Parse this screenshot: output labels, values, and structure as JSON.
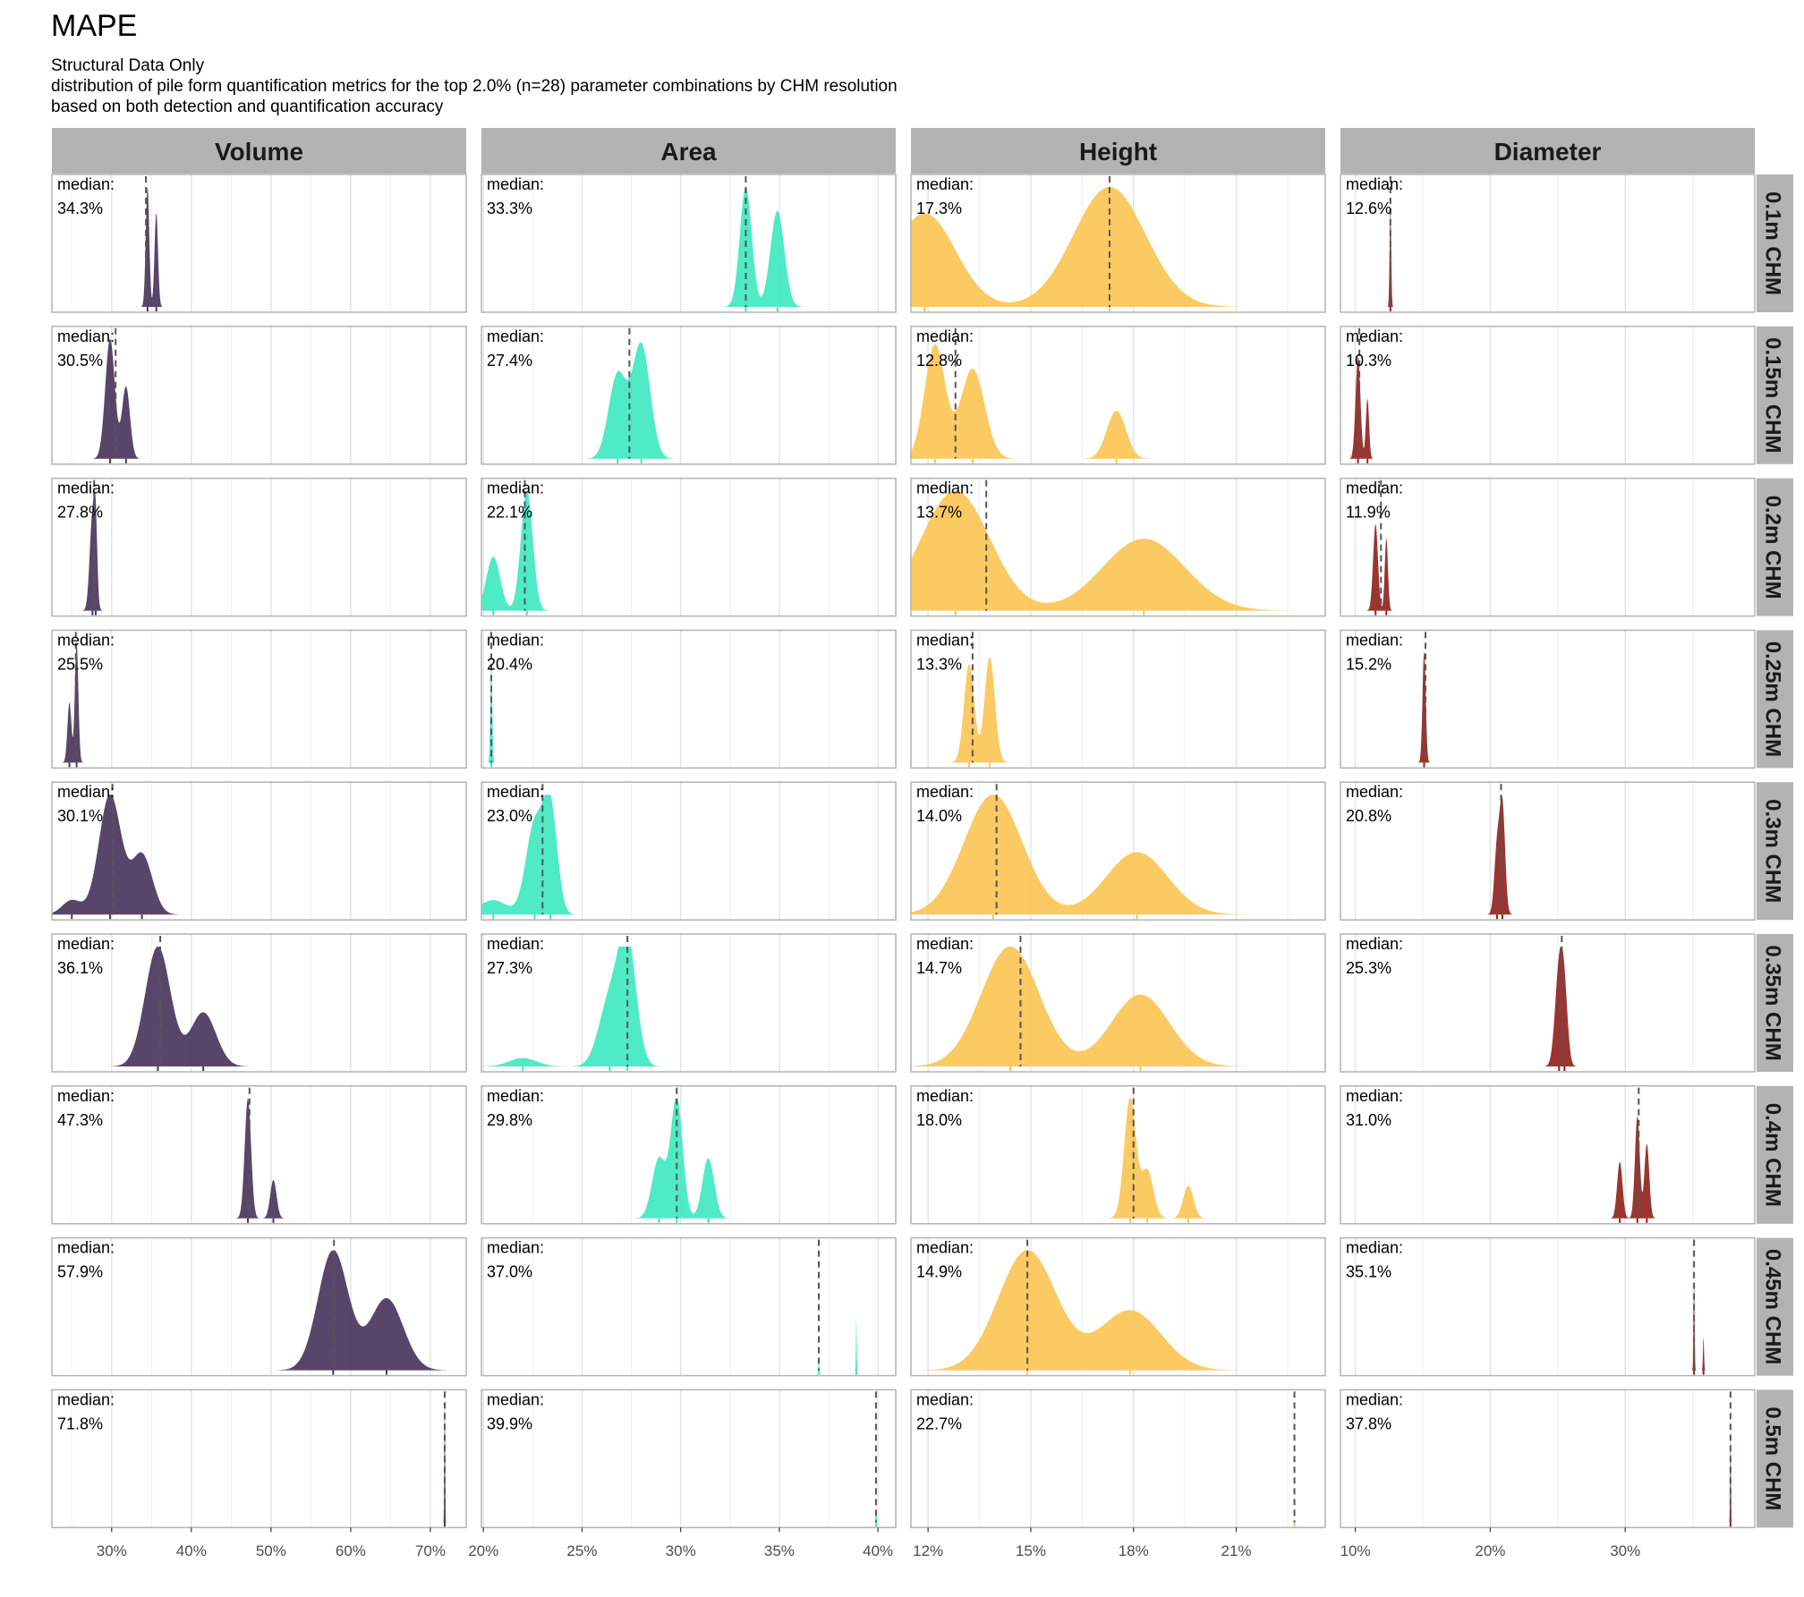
{
  "title": "MAPE",
  "subtitle_lines": [
    "Structural Data Only",
    "distribution of pile form quantification metrics for the top 2.0% (n=28) parameter combinations by CHM resolution",
    "based on both detection and quantification accuracy"
  ],
  "median_prefix": "median:",
  "colors": {
    "Volume": "#46325a",
    "Area": "#3ce8c0",
    "Height": "#fbc451",
    "Diameter": "#8f1f1c",
    "strip_bg": "#b3b3b3",
    "panel_border": "#b3b3b3",
    "grid": "#e3e3e3"
  },
  "chart_data": {
    "type": "density",
    "columns": [
      "Volume",
      "Area",
      "Height",
      "Diameter"
    ],
    "rows": [
      "0.1m CHM",
      "0.15m CHM",
      "0.2m CHM",
      "0.25m CHM",
      "0.3m CHM",
      "0.35m CHM",
      "0.4m CHM",
      "0.45m CHM",
      "0.5m CHM"
    ],
    "x_axes": {
      "Volume": {
        "range": [
          22.5,
          74.5
        ],
        "ticks": [
          30,
          40,
          50,
          60,
          70
        ],
        "tick_labels": [
          "30%",
          "40%",
          "50%",
          "60%",
          "70%"
        ]
      },
      "Area": {
        "range": [
          19.9,
          40.9
        ],
        "ticks": [
          20,
          25,
          30,
          35,
          40
        ],
        "tick_labels": [
          "20%",
          "25%",
          "30%",
          "35%",
          "40%"
        ]
      },
      "Height": {
        "range": [
          11.5,
          23.6
        ],
        "ticks": [
          12,
          15,
          18,
          21
        ],
        "tick_labels": [
          "12%",
          "15%",
          "18%",
          "21%"
        ]
      },
      "Diameter": {
        "range": [
          8.9,
          39.6
        ],
        "ticks": [
          10,
          20,
          30
        ],
        "tick_labels": [
          "10%",
          "20%",
          "30%"
        ]
      }
    },
    "panels": {
      "Volume": [
        {
          "median": 34.3,
          "median_label": "34.3%",
          "peaks": [
            [
              34.5,
              0.22,
              1
            ],
            [
              35.6,
              0.22,
              0.78
            ]
          ]
        },
        {
          "median": 30.5,
          "median_label": "30.5%",
          "peaks": [
            [
              29.8,
              0.6,
              1
            ],
            [
              31.8,
              0.5,
              0.6
            ]
          ]
        },
        {
          "median": 27.8,
          "median_label": "27.8%",
          "peaks": [
            [
              27.6,
              0.35,
              0.8
            ],
            [
              28.0,
              0.2,
              0.5
            ]
          ]
        },
        {
          "median": 25.5,
          "median_label": "25.5%",
          "peaks": [
            [
              24.7,
              0.25,
              0.5
            ],
            [
              25.6,
              0.22,
              1
            ]
          ]
        },
        {
          "median": 30.1,
          "median_label": "30.1%",
          "peaks": [
            [
              25.0,
              1.2,
              0.12
            ],
            [
              29.8,
              1.4,
              1
            ],
            [
              33.8,
              1.3,
              0.5
            ]
          ]
        },
        {
          "median": 36.1,
          "median_label": "36.1%",
          "peaks": [
            [
              35.8,
              1.6,
              1
            ],
            [
              41.5,
              1.6,
              0.45
            ]
          ]
        },
        {
          "median": 47.3,
          "median_label": "47.3%",
          "peaks": [
            [
              47.1,
              0.4,
              1
            ],
            [
              50.3,
              0.4,
              0.32
            ]
          ]
        },
        {
          "median": 57.9,
          "median_label": "57.9%",
          "peaks": [
            [
              57.8,
              1.9,
              1
            ],
            [
              64.5,
              2.1,
              0.6
            ]
          ]
        },
        {
          "median": 71.8,
          "median_label": "71.8%",
          "peaks": [
            [
              71.8,
              0.05,
              1
            ]
          ]
        }
      ],
      "Area": [
        {
          "median": 33.3,
          "median_label": "33.3%",
          "peaks": [
            [
              33.3,
              0.3,
              1
            ],
            [
              34.9,
              0.35,
              0.8
            ]
          ]
        },
        {
          "median": 27.4,
          "median_label": "27.4%",
          "peaks": [
            [
              26.8,
              0.45,
              0.7
            ],
            [
              28.0,
              0.45,
              0.95
            ]
          ]
        },
        {
          "median": 22.1,
          "median_label": "22.1%",
          "peaks": [
            [
              20.5,
              0.35,
              0.45
            ],
            [
              22.2,
              0.3,
              1
            ]
          ]
        },
        {
          "median": 20.4,
          "median_label": "20.4%",
          "peaks": [
            [
              20.4,
              0.05,
              0.8
            ]
          ]
        },
        {
          "median": 23.0,
          "median_label": "23.0%",
          "peaks": [
            [
              20.5,
              0.7,
              0.12
            ],
            [
              22.6,
              0.45,
              0.75
            ],
            [
              23.4,
              0.35,
              0.85
            ]
          ]
        },
        {
          "median": 27.3,
          "median_label": "27.3%",
          "peaks": [
            [
              22.0,
              0.7,
              0.07
            ],
            [
              26.4,
              0.55,
              0.55
            ],
            [
              27.3,
              0.45,
              1
            ]
          ]
        },
        {
          "median": 29.8,
          "median_label": "29.8%",
          "peaks": [
            [
              28.9,
              0.35,
              0.5
            ],
            [
              29.8,
              0.3,
              1
            ],
            [
              31.4,
              0.3,
              0.5
            ]
          ]
        },
        {
          "median": 37.0,
          "median_label": "37.0%",
          "peaks": [
            [
              37.0,
              0.03,
              0.05
            ],
            [
              38.9,
              0.02,
              0.42
            ]
          ]
        },
        {
          "median": 39.9,
          "median_label": "39.9%",
          "peaks": [
            [
              39.9,
              0.03,
              0.1
            ]
          ]
        }
      ],
      "Height": [
        {
          "median": 17.3,
          "median_label": "17.3%",
          "peaks": [
            [
              11.9,
              0.9,
              0.78
            ],
            [
              17.3,
              1.05,
              1
            ]
          ]
        },
        {
          "median": 12.8,
          "median_label": "12.8%",
          "peaks": [
            [
              12.2,
              0.3,
              0.95
            ],
            [
              13.3,
              0.35,
              0.75
            ],
            [
              17.5,
              0.28,
              0.4
            ]
          ]
        },
        {
          "median": 13.7,
          "median_label": "13.7%",
          "peaks": [
            [
              12.8,
              1.0,
              1
            ],
            [
              18.3,
              1.2,
              0.6
            ]
          ]
        },
        {
          "median": 13.3,
          "median_label": "13.3%",
          "peaks": [
            [
              13.2,
              0.15,
              0.82
            ],
            [
              13.8,
              0.15,
              0.88
            ]
          ]
        },
        {
          "median": 14.0,
          "median_label": "14.0%",
          "peaks": [
            [
              13.9,
              0.85,
              1
            ],
            [
              18.1,
              0.9,
              0.52
            ]
          ]
        },
        {
          "median": 14.7,
          "median_label": "14.7%",
          "peaks": [
            [
              14.4,
              0.85,
              1
            ],
            [
              18.2,
              0.85,
              0.6
            ]
          ]
        },
        {
          "median": 18.0,
          "median_label": "18.0%",
          "peaks": [
            [
              17.9,
              0.17,
              1
            ],
            [
              18.4,
              0.18,
              0.4
            ],
            [
              19.6,
              0.15,
              0.27
            ]
          ]
        },
        {
          "median": 14.9,
          "median_label": "14.9%",
          "peaks": [
            [
              14.9,
              0.85,
              1
            ],
            [
              17.9,
              0.9,
              0.5
            ]
          ]
        },
        {
          "median": 22.7,
          "median_label": "22.7%",
          "peaks": [
            [
              22.7,
              0.02,
              0.02
            ]
          ]
        }
      ],
      "Diameter": [
        {
          "median": 12.6,
          "median_label": "12.6%",
          "peaks": [
            [
              12.6,
              0.06,
              0.8
            ]
          ]
        },
        {
          "median": 10.3,
          "median_label": "10.3%",
          "peaks": [
            [
              10.2,
              0.18,
              0.85
            ],
            [
              10.9,
              0.12,
              0.5
            ]
          ]
        },
        {
          "median": 11.9,
          "median_label": "11.9%",
          "peaks": [
            [
              11.5,
              0.18,
              0.72
            ],
            [
              12.3,
              0.12,
              0.6
            ]
          ]
        },
        {
          "median": 15.2,
          "median_label": "15.2%",
          "peaks": [
            [
              15.1,
              0.12,
              0.92
            ]
          ]
        },
        {
          "median": 20.8,
          "median_label": "20.8%",
          "peaks": [
            [
              20.5,
              0.2,
              0.55
            ],
            [
              20.9,
              0.2,
              0.9
            ]
          ]
        },
        {
          "median": 25.3,
          "median_label": "25.3%",
          "peaks": [
            [
              25.1,
              0.3,
              0.8
            ],
            [
              25.5,
              0.25,
              0.5
            ]
          ]
        },
        {
          "median": 31.0,
          "median_label": "31.0%",
          "peaks": [
            [
              29.6,
              0.2,
              0.47
            ],
            [
              30.9,
              0.18,
              0.85
            ],
            [
              31.6,
              0.18,
              0.62
            ]
          ]
        },
        {
          "median": 35.1,
          "median_label": "35.1%",
          "peaks": [
            [
              35.1,
              0.04,
              0.72
            ],
            [
              35.8,
              0.04,
              0.27
            ]
          ]
        },
        {
          "median": 37.8,
          "median_label": "37.8%",
          "peaks": [
            [
              37.8,
              0.03,
              0.72
            ]
          ]
        }
      ]
    }
  }
}
